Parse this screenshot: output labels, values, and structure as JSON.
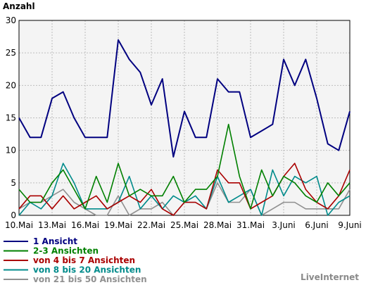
{
  "chart_data": {
    "type": "line",
    "ylabel": "Anzahl",
    "ylim": [
      0,
      30
    ],
    "yticks": [
      "0",
      "5",
      "10",
      "15",
      "20",
      "25",
      "30"
    ],
    "x": [
      "10.Mai",
      "11.Mai",
      "12.Mai",
      "13.Mai",
      "14.Mai",
      "15.Mai",
      "16.Mai",
      "17.Mai",
      "18.Mai",
      "19.Mai",
      "20.Mai",
      "21.Mai",
      "22.Mai",
      "23.Mai",
      "24.Mai",
      "25.Mai",
      "26.Mai",
      "27.Mai",
      "28.Mai",
      "29.Mai",
      "30.Mai",
      "31.Mai",
      "1.Juni",
      "2.Juni",
      "3.Juni",
      "4.Juni",
      "5.Juni",
      "6.Juni",
      "7.Juni",
      "8.Juni",
      "9.Juni"
    ],
    "xticks": [
      "10.Mai",
      "13.Mai",
      "16.Mai",
      "19.Mai",
      "22.Mai",
      "25.Mai",
      "28.Mai",
      "31.Mai",
      "3.Juni",
      "6.Juni",
      "9.Juni"
    ],
    "grid": true,
    "legend_position": "bottom-left",
    "background": "#f4f4f4",
    "series": [
      {
        "name": "1 Ansicht",
        "color": "#000080",
        "values": [
          15,
          12,
          12,
          18,
          19,
          15,
          12,
          12,
          12,
          27,
          24,
          22,
          17,
          21,
          9,
          16,
          12,
          12,
          21,
          19,
          19,
          12,
          13,
          14,
          24,
          20,
          24,
          18,
          11,
          10,
          16
        ]
      },
      {
        "name": "2-3 Ansichten",
        "color": "#008000",
        "values": [
          4,
          2,
          2,
          5,
          7,
          4,
          1,
          6,
          2,
          8,
          3,
          4,
          3,
          3,
          6,
          2,
          4,
          4,
          6,
          14,
          6,
          1,
          7,
          3,
          6,
          5,
          3,
          2,
          5,
          3,
          5
        ]
      },
      {
        "name": "von 4 bis 7 Ansichten",
        "color": "#aa0000",
        "values": [
          1,
          3,
          3,
          1,
          3,
          1,
          2,
          3,
          1,
          2,
          3,
          2,
          4,
          1,
          0,
          2,
          2,
          1,
          7,
          5,
          5,
          1,
          2,
          3,
          6,
          8,
          4,
          2,
          1,
          3,
          7
        ]
      },
      {
        "name": "von 8 bis 20 Ansichten",
        "color": "#008b8b",
        "values": [
          0,
          2,
          1,
          3,
          8,
          5,
          1,
          1,
          1,
          2,
          6,
          1,
          3,
          1,
          3,
          2,
          3,
          1,
          6,
          2,
          3,
          4,
          0,
          7,
          3,
          6,
          5,
          6,
          0,
          2,
          3
        ]
      },
      {
        "name": "von 21 bis 50 Ansichten",
        "color": "#909090",
        "values": [
          1,
          2,
          2,
          3,
          4,
          2,
          1,
          0,
          0,
          3,
          0,
          1,
          1,
          2,
          0,
          2,
          2,
          1,
          5,
          2,
          2,
          4,
          0,
          1,
          2,
          2,
          1,
          1,
          1,
          1,
          4
        ]
      }
    ]
  },
  "brand": "LiveInternet"
}
